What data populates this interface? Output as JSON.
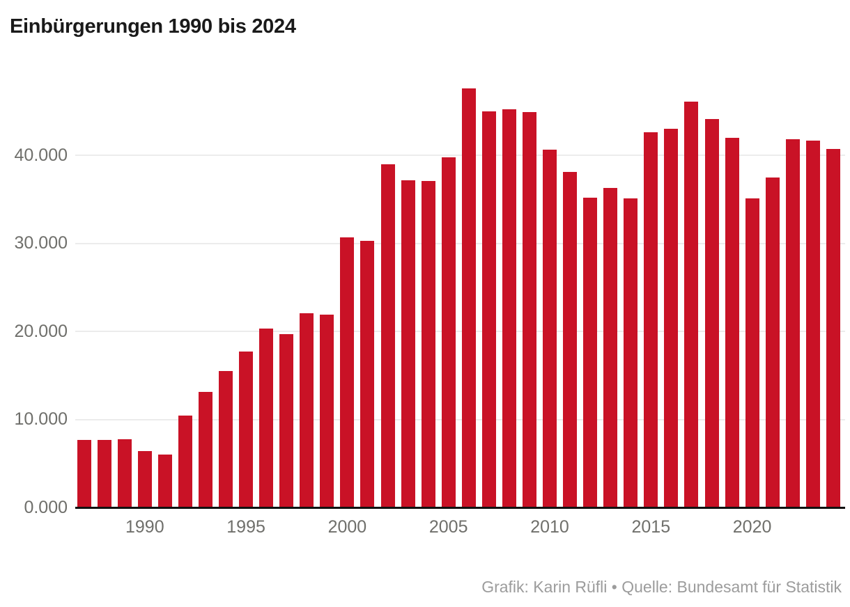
{
  "title": "Einbürgerungen 1990 bis 2024",
  "credit": "Grafik: Karin Rüfli • Quelle: Bundesamt für Statistik",
  "colors": {
    "bar": "#c91226",
    "title": "#1a1a1a",
    "axis_label": "#6f6f6b",
    "gridline": "#ececec",
    "axis_line": "#111111",
    "credit": "#9c9c9c",
    "background": "#ffffff"
  },
  "chart_data": {
    "type": "bar",
    "title": "Einbürgerungen 1990 bis 2024",
    "xlabel": "",
    "ylabel": "",
    "ylim": [
      0,
      50000
    ],
    "grid": "horizontal-only",
    "legend": "none",
    "categories": [
      1987,
      1988,
      1989,
      1990,
      1991,
      1992,
      1993,
      1994,
      1995,
      1996,
      1997,
      1998,
      1999,
      2000,
      2001,
      2002,
      2003,
      2004,
      2005,
      2006,
      2007,
      2008,
      2009,
      2010,
      2011,
      2012,
      2013,
      2014,
      2015,
      2016,
      2017,
      2018,
      2019,
      2020,
      2021,
      2022,
      2023,
      2024
    ],
    "values": [
      7650,
      7650,
      7750,
      6400,
      6050,
      10400,
      13100,
      15500,
      17700,
      20300,
      19700,
      22050,
      21900,
      30650,
      30250,
      38950,
      37150,
      37050,
      39750,
      47600,
      45000,
      45250,
      44900,
      40650,
      38100,
      35200,
      36300,
      35100,
      42600,
      43000,
      46100,
      44100,
      42000,
      35100,
      37500,
      41800,
      41700,
      40700
    ],
    "y_ticks": [
      {
        "value": 0,
        "label": "0.000"
      },
      {
        "value": 10000,
        "label": "10.000"
      },
      {
        "value": 20000,
        "label": "20.000"
      },
      {
        "value": 30000,
        "label": "30.000"
      },
      {
        "value": 40000,
        "label": "40.000"
      }
    ],
    "x_ticks": [
      {
        "year": 1990,
        "label": "1990"
      },
      {
        "year": 1995,
        "label": "1995"
      },
      {
        "year": 2000,
        "label": "2000"
      },
      {
        "year": 2005,
        "label": "2005"
      },
      {
        "year": 2010,
        "label": "2010"
      },
      {
        "year": 2015,
        "label": "2015"
      },
      {
        "year": 2020,
        "label": "2020"
      }
    ]
  }
}
